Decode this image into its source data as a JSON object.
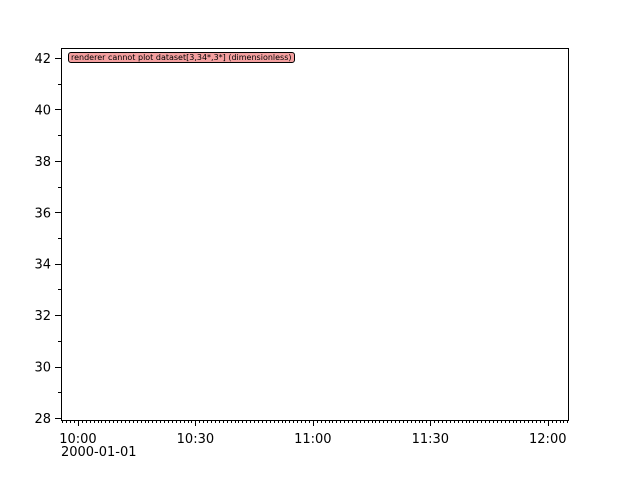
{
  "chart_data": {
    "type": "line",
    "title": "",
    "xlabel": "",
    "ylabel": "",
    "series": [],
    "xlim": [
      "2000-01-01 09:55:40",
      "2000-01-01 12:05:10"
    ],
    "ylim": [
      27.92,
      42.39
    ],
    "x_ticks": [
      "10:00",
      "10:30",
      "11:00",
      "11:30",
      "12:00"
    ],
    "x_tick_minutes": [
      0,
      30,
      60,
      90,
      120
    ],
    "x_date_label": "2000-01-01",
    "y_ticks": [
      28,
      30,
      32,
      34,
      36,
      38,
      40,
      42
    ],
    "grid": false,
    "message": "renderer cannot plot dataset[3,34*,3*] (dimensionless)",
    "message_color": "#f4a0a0"
  }
}
